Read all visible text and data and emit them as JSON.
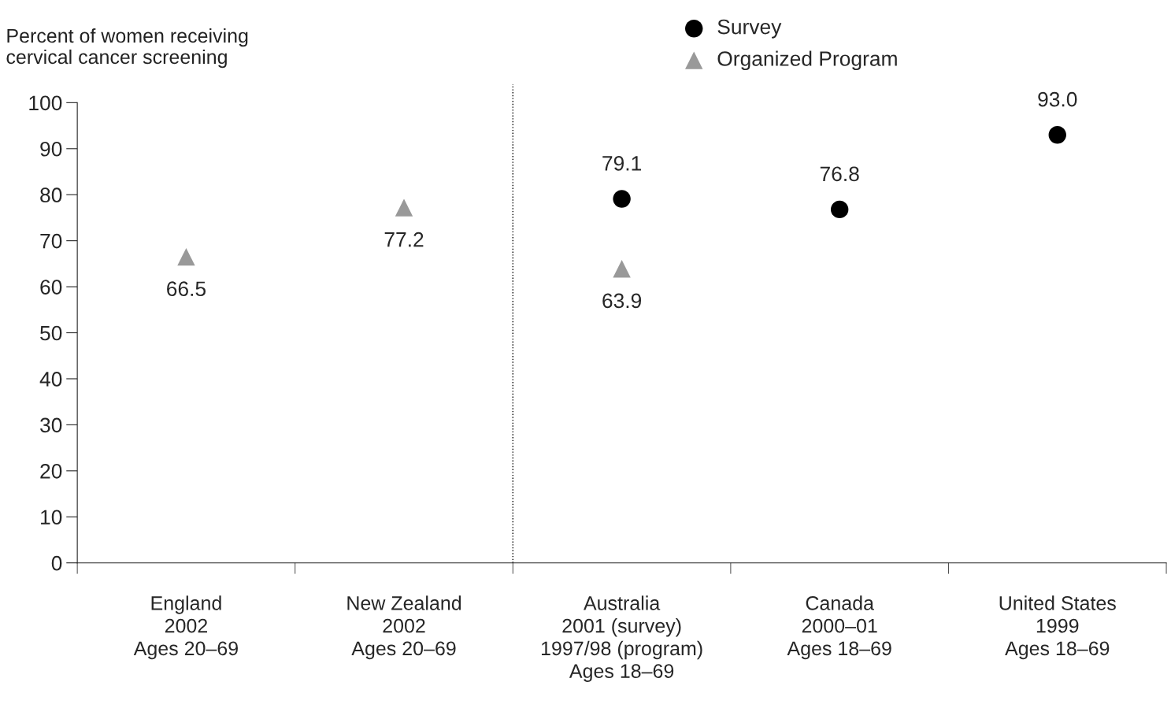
{
  "chart_data": {
    "type": "scatter",
    "ylabel": "Percent of women receiving\ncervical cancer screening",
    "categories": [
      "England\n2002\nAges 20–69",
      "New Zealand\n2002\nAges 20–69",
      "Australia\n2001 (survey)\n1997/98 (program)\nAges 18–69",
      "Canada\n2000–01\nAges 18–69",
      "United States\n1999\nAges 18–69"
    ],
    "series": [
      {
        "name": "Survey",
        "color": "#000000",
        "marker": "circle",
        "values": [
          null,
          null,
          79.1,
          76.8,
          93.0
        ],
        "value_labels": [
          null,
          null,
          "79.1",
          "76.8",
          "93.0"
        ]
      },
      {
        "name": "Organized Program",
        "color": "#999999",
        "marker": "triangle",
        "values": [
          66.5,
          77.2,
          63.9,
          null,
          null
        ],
        "value_labels": [
          "66.5",
          "77.2",
          "63.9",
          null,
          null
        ]
      }
    ],
    "ylim": [
      0,
      100
    ],
    "yticks": [
      0,
      10,
      20,
      30,
      40,
      50,
      60,
      70,
      80,
      90,
      100
    ],
    "grid": false,
    "legend": "top"
  }
}
